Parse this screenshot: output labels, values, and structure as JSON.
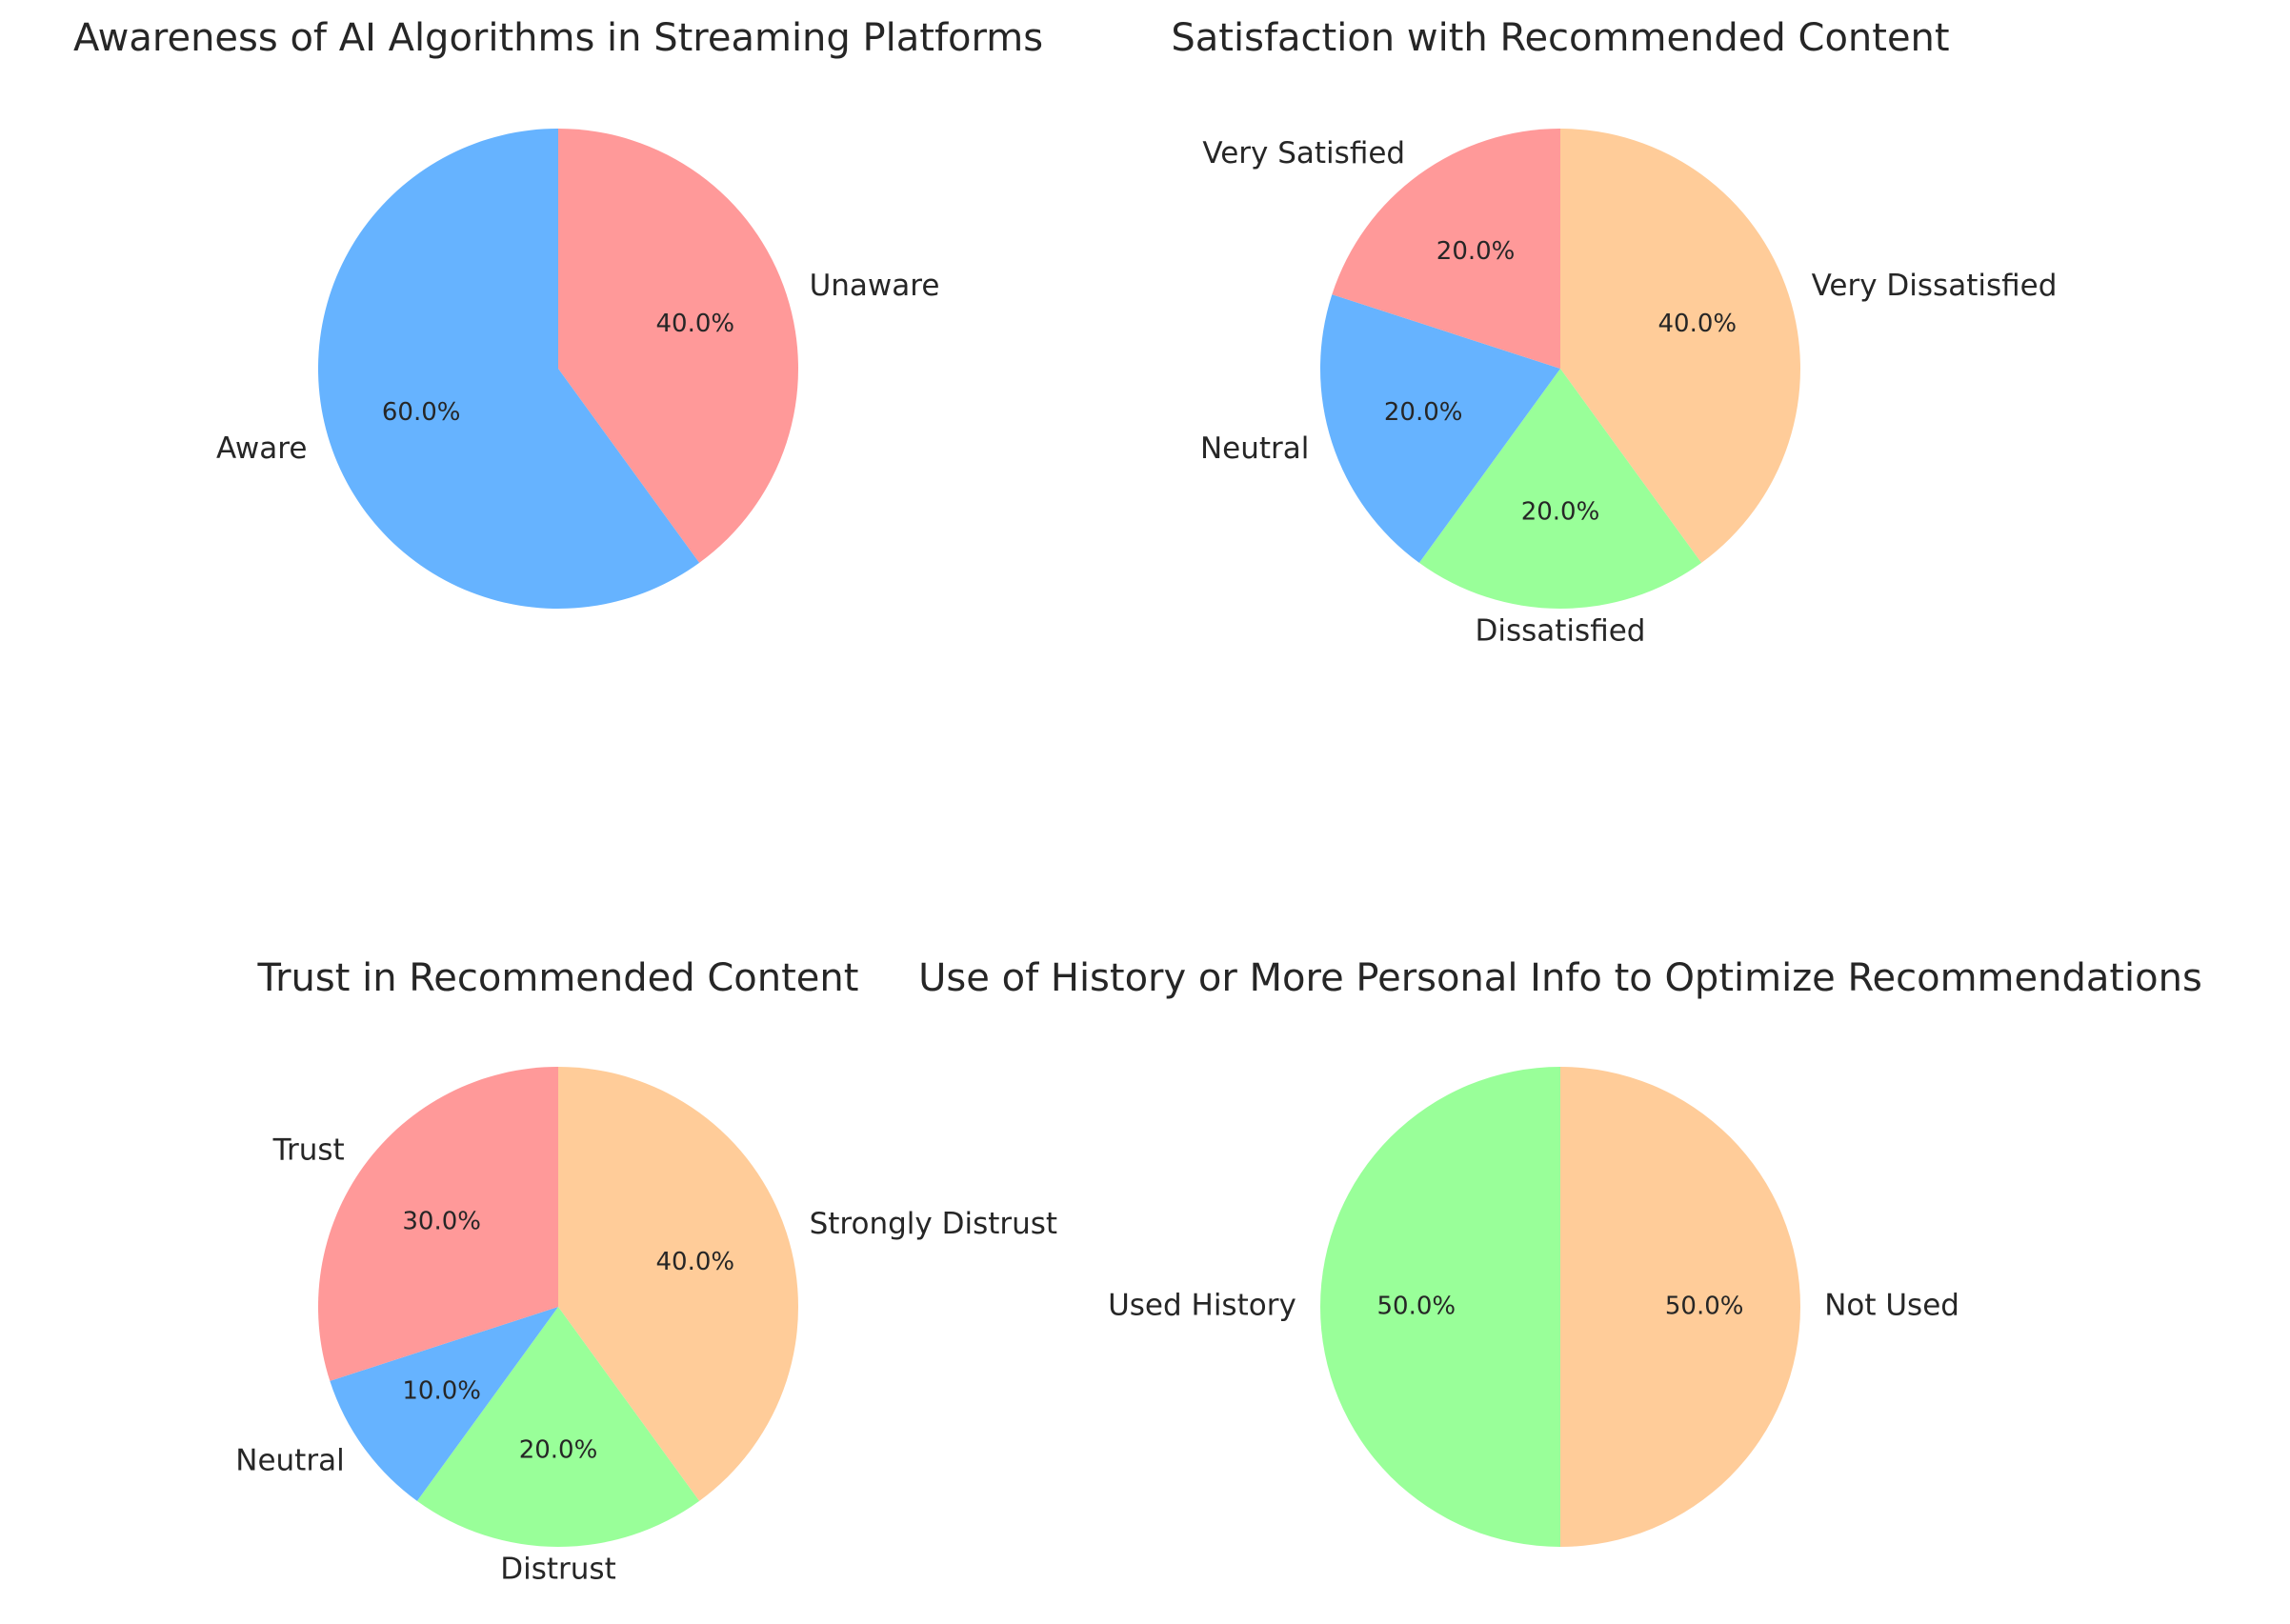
{
  "chart_data": [
    {
      "type": "pie",
      "title": "Awareness of AI Algorithms in Streaming Platforms",
      "categories": [
        "Unaware",
        "Aware"
      ],
      "values": [
        40.0,
        60.0
      ],
      "value_labels": [
        "40.0%",
        "60.0%"
      ],
      "colors": [
        "#ff9999",
        "#66b3ff"
      ],
      "start_angle_deg": 90,
      "direction": "clockwise"
    },
    {
      "type": "pie",
      "title": "Satisfaction with Recommended Content",
      "categories": [
        "Very Dissatisfied",
        "Dissatisfied",
        "Neutral",
        "Very Satisfied"
      ],
      "values": [
        40.0,
        20.0,
        20.0,
        20.0
      ],
      "value_labels": [
        "40.0%",
        "20.0%",
        "20.0%",
        "20.0%"
      ],
      "colors": [
        "#ffcc99",
        "#99ff99",
        "#66b3ff",
        "#ff9999"
      ],
      "start_angle_deg": 90,
      "direction": "clockwise"
    },
    {
      "type": "pie",
      "title": "Trust in Recommended Content",
      "categories": [
        "Strongly Distrust",
        "Distrust",
        "Neutral",
        "Trust"
      ],
      "values": [
        40.0,
        20.0,
        10.0,
        30.0
      ],
      "value_labels": [
        "40.0%",
        "20.0%",
        "10.0%",
        "30.0%"
      ],
      "colors": [
        "#ffcc99",
        "#99ff99",
        "#66b3ff",
        "#ff9999"
      ],
      "start_angle_deg": 90,
      "direction": "clockwise"
    },
    {
      "type": "pie",
      "title": "Use of History or More Personal Info to Optimize Recommendations",
      "categories": [
        "Not Used",
        "Used History"
      ],
      "values": [
        50.0,
        50.0
      ],
      "value_labels": [
        "50.0%",
        "50.0%"
      ],
      "colors": [
        "#ffcc99",
        "#99ff99"
      ],
      "start_angle_deg": 90,
      "direction": "clockwise"
    }
  ]
}
